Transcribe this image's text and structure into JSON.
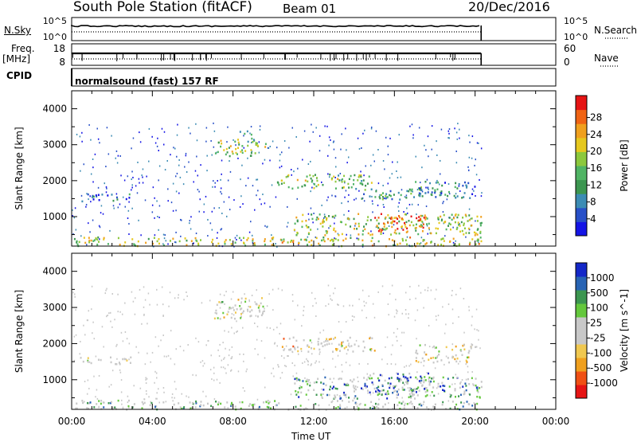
{
  "header": {
    "title": "South Pole Station (fitACF)",
    "beam": "Beam 01",
    "date": "20/Dec/2016"
  },
  "left_labels": {
    "nsky": "N.Sky",
    "freq": "Freq.",
    "freq_unit": "[MHz]",
    "cpid": "CPID"
  },
  "right_labels": {
    "nsearch": "N.Search",
    "nave": "Nave"
  },
  "cpid_text": "normalsound (fast) 157 RF",
  "colors": {
    "power_scale": [
      "#1414e6",
      "#2850c8",
      "#3c8cb4",
      "#3c9650",
      "#50b464",
      "#8cc83c",
      "#e6c81e",
      "#f0a01e",
      "#f06414",
      "#e61414"
    ],
    "velocity_scale": [
      "#e61414",
      "#f05014",
      "#f0a01e",
      "#f0c850",
      "#c8c8c8",
      "#c8c8c8",
      "#64c83c",
      "#3c9650",
      "#2864b4",
      "#1428c8"
    ]
  },
  "chart_data": [
    {
      "type": "line",
      "name": "sky-noise-panel",
      "ylabel_left": "N.Sky",
      "ylabel_right": "N.Search",
      "left_ticks": [
        "10^5",
        "10^0"
      ],
      "right_ticks": [
        "10^5",
        "10^0"
      ],
      "xlim": [
        0,
        24
      ],
      "x_data_end": 20.3,
      "series": [
        {
          "style": "solid"
        },
        {
          "style": "dotted"
        }
      ]
    },
    {
      "type": "line",
      "name": "frequency-panel",
      "ylabel_left": "Freq. [MHz]",
      "ylabel_right": "Nave",
      "left_ticks": [
        "18",
        "8"
      ],
      "right_ticks": [
        "60",
        "0"
      ],
      "xlim": [
        0,
        24
      ],
      "x_data_end": 20.3
    },
    {
      "type": "heatmap",
      "name": "power-panel",
      "ylabel": "Slant Range [km]",
      "colorbar_label": "Power [dB]",
      "colorbar_ticks": [
        "4",
        "8",
        "12",
        "16",
        "20",
        "24",
        "28"
      ],
      "ylim": [
        180,
        4500
      ],
      "y_ticks": [
        "1000",
        "2000",
        "3000",
        "4000"
      ],
      "xlim": [
        0,
        24
      ],
      "regions": [
        {
          "t": [
            0.4,
            3.0
          ],
          "r": [
            1450,
            1650
          ],
          "level": 0.22
        },
        {
          "t": [
            7.0,
            9.6
          ],
          "r": [
            2700,
            3150
          ],
          "level": 0.55
        },
        {
          "t": [
            8.2,
            9.0
          ],
          "r": [
            3100,
            3400
          ],
          "level": 0.45
        },
        {
          "t": [
            10.0,
            15.0
          ],
          "r": [
            1800,
            2200
          ],
          "level": 0.5
        },
        {
          "t": [
            14.0,
            17.5
          ],
          "r": [
            1500,
            1800
          ],
          "level": 0.35
        },
        {
          "t": [
            17.0,
            20.0
          ],
          "r": [
            1500,
            2000
          ],
          "level": 0.28
        },
        {
          "t": [
            11.0,
            20.3
          ],
          "r": [
            500,
            1100
          ],
          "level": 0.55
        },
        {
          "t": [
            15.0,
            17.5
          ],
          "r": [
            600,
            1100
          ],
          "level": 0.9
        },
        {
          "t": [
            0.0,
            20.3
          ],
          "r": [
            200,
            450
          ],
          "level": 0.6
        }
      ]
    },
    {
      "type": "heatmap",
      "name": "velocity-panel",
      "ylabel": "Slant Range [km]",
      "colorbar_label": "Velocity [m s^-1]",
      "colorbar_ticks": [
        "-1000",
        "-500",
        "-100",
        "-25",
        "25",
        "100",
        "500",
        "1000"
      ],
      "ylim": [
        180,
        4500
      ],
      "y_ticks": [
        "1000",
        "2000",
        "3000",
        "4000"
      ],
      "xlim": [
        0,
        24
      ],
      "regions": [
        {
          "t": [
            0.4,
            3.0
          ],
          "r": [
            1450,
            1650
          ],
          "level": 0.5
        },
        {
          "t": [
            7.0,
            9.6
          ],
          "r": [
            2700,
            3300
          ],
          "level": 0.5
        },
        {
          "t": [
            10.0,
            15.0
          ],
          "r": [
            1800,
            2200
          ],
          "level": 0.4
        },
        {
          "t": [
            17.0,
            20.0
          ],
          "r": [
            1500,
            2000
          ],
          "level": 0.45
        },
        {
          "t": [
            11.0,
            20.3
          ],
          "r": [
            500,
            1100
          ],
          "level": 0.75
        },
        {
          "t": [
            14.5,
            18.0
          ],
          "r": [
            600,
            1200
          ],
          "level": 0.85
        },
        {
          "t": [
            0.0,
            20.3
          ],
          "r": [
            200,
            450
          ],
          "level": 0.62
        }
      ]
    }
  ],
  "x_axis": {
    "label": "Time UT",
    "ticks": [
      "00:00",
      "04:00",
      "08:00",
      "12:00",
      "16:00",
      "20:00",
      "00:00"
    ]
  }
}
